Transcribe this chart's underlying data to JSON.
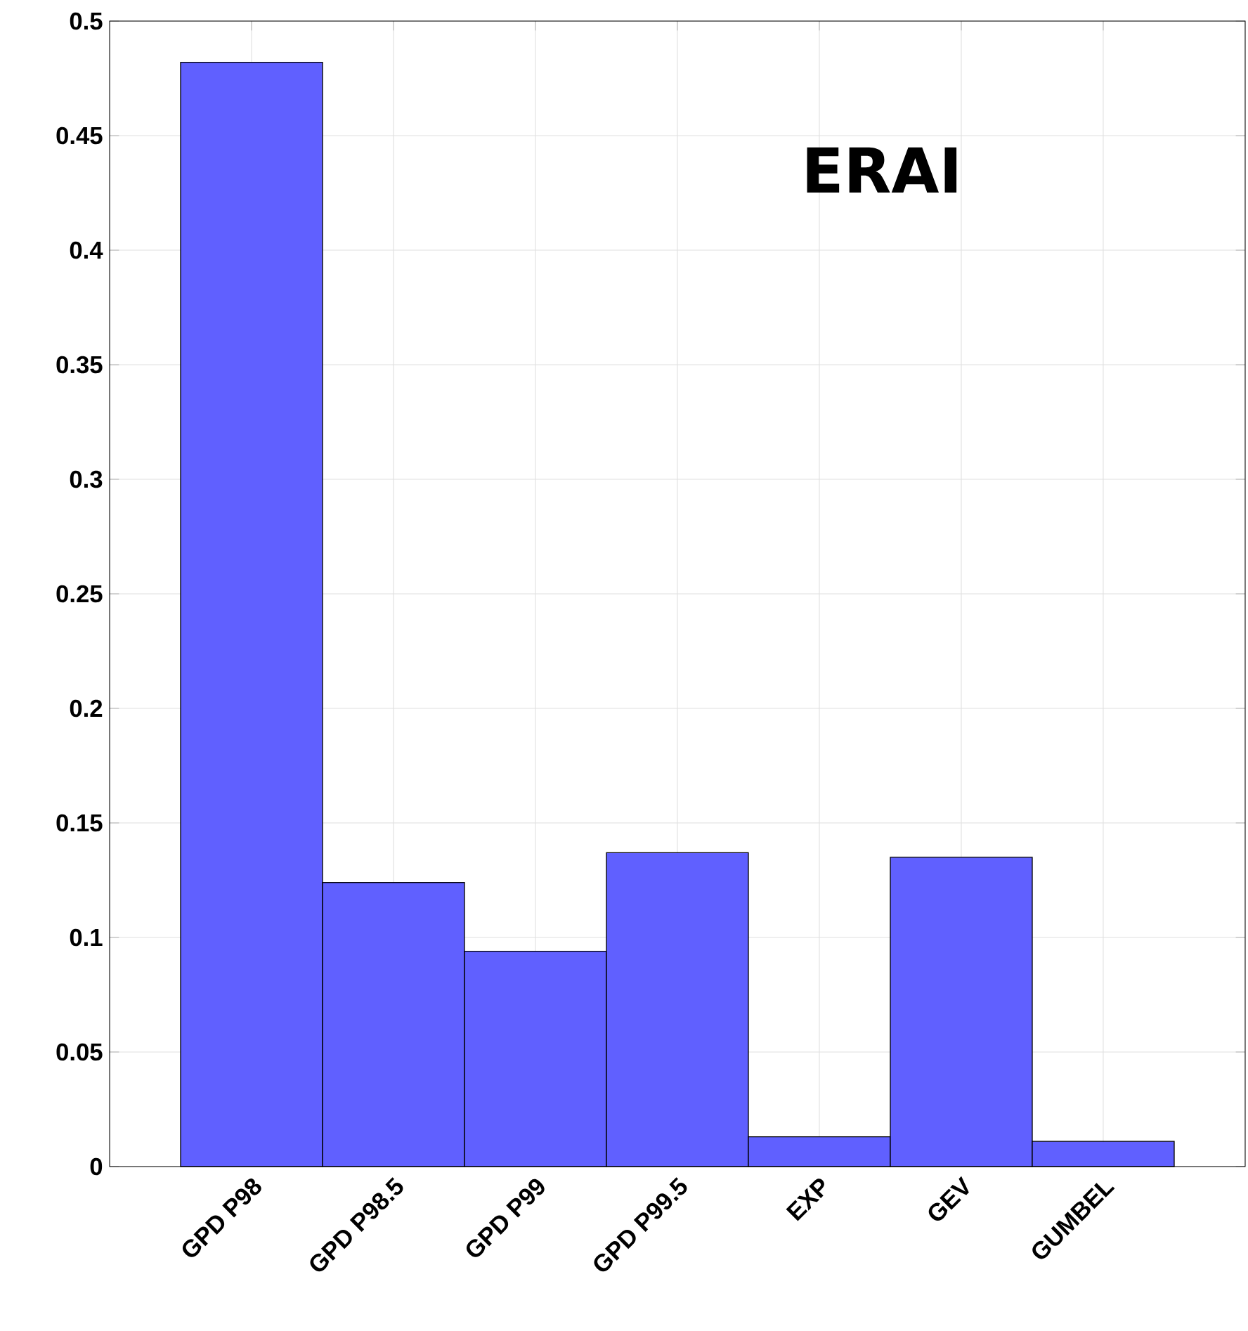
{
  "chart_data": {
    "type": "bar",
    "categories": [
      "GPD P98",
      "GPD P98.5",
      "GPD P99",
      "GPD P99.5",
      "EXP",
      "GEV",
      "GUMBEL"
    ],
    "values": [
      0.482,
      0.124,
      0.094,
      0.137,
      0.013,
      0.135,
      0.011
    ],
    "color": "#6060ff",
    "ylim": [
      0,
      0.5
    ],
    "yticks": [
      0,
      0.05,
      0.1,
      0.15,
      0.2,
      0.25,
      0.3,
      0.35,
      0.4,
      0.45,
      0.5
    ],
    "grid": true,
    "annotations": [
      "ERAI"
    ]
  }
}
